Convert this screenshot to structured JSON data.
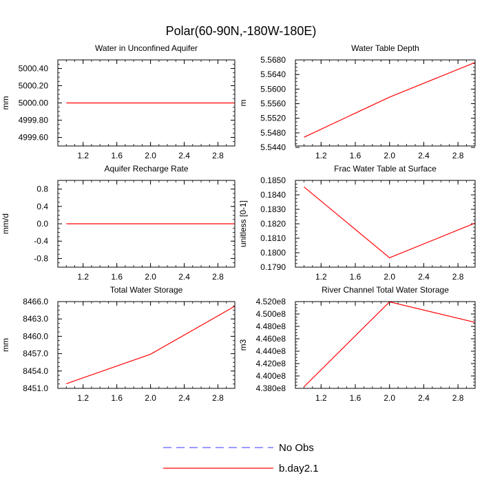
{
  "figure": {
    "title": "Polar(60-90N,-180W-180E)"
  },
  "legend": {
    "entries": [
      {
        "label": "No Obs",
        "color": "#3333ff",
        "dashed": true
      },
      {
        "label": "b.day2.1",
        "color": "#ff0000",
        "dashed": false
      }
    ]
  },
  "chart_data": [
    {
      "type": "line",
      "title": "Water in Unconfined Aquifer",
      "ylabel": "mm",
      "xlim": [
        0.9,
        3.0
      ],
      "ylim": [
        4999.5,
        5000.5
      ],
      "xticks": [
        1.2,
        1.6,
        2.0,
        2.4,
        2.8
      ],
      "xtick_labels": [
        "1.2",
        "1.6",
        "2.0",
        "2.4",
        "2.8"
      ],
      "yticks": [
        4999.6,
        4999.8,
        5000.0,
        5000.2,
        5000.4
      ],
      "ytick_labels": [
        "4999.60",
        "4999.80",
        "5000.00",
        "5000.20",
        "5000.40"
      ],
      "series": [
        {
          "name": "b.day2.1",
          "x": [
            1.0,
            2.0,
            3.0
          ],
          "values": [
            5000.0,
            5000.0,
            5000.0
          ]
        }
      ]
    },
    {
      "type": "line",
      "title": "Water Table Depth",
      "ylabel": "m",
      "xlim": [
        0.9,
        3.0
      ],
      "ylim": [
        5.5444,
        5.568
      ],
      "xticks": [
        1.2,
        1.6,
        2.0,
        2.4,
        2.8
      ],
      "xtick_labels": [
        "1.2",
        "1.6",
        "2.0",
        "2.4",
        "2.8"
      ],
      "yticks": [
        5.544,
        5.548,
        5.552,
        5.556,
        5.56,
        5.564,
        5.568
      ],
      "ytick_labels": [
        "5.5440",
        "5.5480",
        "5.5520",
        "5.5560",
        "5.5600",
        "5.5640",
        "5.5680"
      ],
      "series": [
        {
          "name": "b.day2.1",
          "x": [
            1.0,
            2.0,
            3.0
          ],
          "values": [
            5.5468,
            5.5578,
            5.5673
          ]
        }
      ]
    },
    {
      "type": "line",
      "title": "Aquifer Recharge Rate",
      "ylabel": "mm/d",
      "xlim": [
        0.9,
        3.0
      ],
      "ylim": [
        -1.0,
        1.0
      ],
      "xticks": [
        1.2,
        1.6,
        2.0,
        2.4,
        2.8
      ],
      "xtick_labels": [
        "1.2",
        "1.6",
        "2.0",
        "2.4",
        "2.8"
      ],
      "yticks": [
        -0.8,
        -0.4,
        0.0,
        0.4,
        0.8
      ],
      "ytick_labels": [
        "-0.8",
        "-0.4",
        "0.0",
        "0.4",
        "0.8"
      ],
      "series": [
        {
          "name": "b.day2.1",
          "x": [
            1.0,
            2.0,
            3.0
          ],
          "values": [
            0.0,
            0.0,
            0.0
          ]
        }
      ]
    },
    {
      "type": "line",
      "title": "Frac Water Table at Surface",
      "ylabel": "unitless [0-1]",
      "xlim": [
        0.9,
        3.0
      ],
      "ylim": [
        0.179,
        0.185
      ],
      "xticks": [
        1.2,
        1.6,
        2.0,
        2.4,
        2.8
      ],
      "xtick_labels": [
        "1.2",
        "1.6",
        "2.0",
        "2.4",
        "2.8"
      ],
      "yticks": [
        0.179,
        0.18,
        0.181,
        0.182,
        0.183,
        0.184,
        0.185
      ],
      "ytick_labels": [
        "0.1790",
        "0.1800",
        "0.1810",
        "0.1820",
        "0.1830",
        "0.1840",
        "0.1850"
      ],
      "series": [
        {
          "name": "b.day2.1",
          "x": [
            1.0,
            2.0,
            3.0
          ],
          "values": [
            0.18455,
            0.17965,
            0.18205
          ]
        }
      ]
    },
    {
      "type": "line",
      "title": "Total Water Storage",
      "ylabel": "mm",
      "xlim": [
        0.9,
        3.0
      ],
      "ylim": [
        8451.0,
        8466.0
      ],
      "xticks": [
        1.2,
        1.6,
        2.0,
        2.4,
        2.8
      ],
      "xtick_labels": [
        "1.2",
        "1.6",
        "2.0",
        "2.4",
        "2.8"
      ],
      "yticks": [
        8451.0,
        8454.0,
        8457.0,
        8460.0,
        8463.0,
        8466.0
      ],
      "ytick_labels": [
        "8451.0",
        "8454.0",
        "8457.0",
        "8460.0",
        "8463.0",
        "8466.0"
      ],
      "series": [
        {
          "name": "b.day2.1",
          "x": [
            1.0,
            2.0,
            3.0
          ],
          "values": [
            8451.8,
            8456.9,
            8465.2
          ]
        }
      ]
    },
    {
      "type": "line",
      "title": "River Channel Total Water Storage",
      "ylabel": "m3",
      "xlim": [
        0.9,
        3.0
      ],
      "ylim": [
        438000000.0,
        452000000.0
      ],
      "xticks": [
        1.2,
        1.6,
        2.0,
        2.4,
        2.8
      ],
      "xtick_labels": [
        "1.2",
        "1.6",
        "2.0",
        "2.4",
        "2.8"
      ],
      "yticks": [
        438000000.0,
        440000000.0,
        442000000.0,
        444000000.0,
        446000000.0,
        448000000.0,
        450000000.0,
        452000000.0
      ],
      "ytick_labels": [
        "4.380e8",
        "4.400e8",
        "4.420e8",
        "4.440e8",
        "4.460e8",
        "4.480e8",
        "4.500e8",
        "4.520e8"
      ],
      "series": [
        {
          "name": "b.day2.1",
          "x": [
            1.0,
            2.0,
            3.0
          ],
          "values": [
            438250000.0,
            451950000.0,
            448650000.0
          ]
        }
      ]
    }
  ]
}
